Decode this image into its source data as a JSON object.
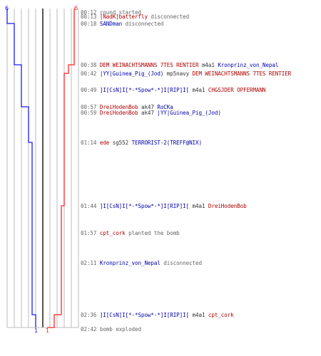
{
  "colors": {
    "team_blue": "#1a1aff",
    "team_red": "#ff2222",
    "name_red": "#b00000",
    "name_blue": "#0000aa",
    "time_gray": "#666666",
    "grid_line": "#bbbbbb",
    "grid_mid": "#555555"
  },
  "graph": {
    "blue_start": "6",
    "red_start": "6",
    "blue_end": "1",
    "red_end": "1",
    "blue_remaining": [
      6,
      5,
      4,
      4,
      3,
      3,
      3,
      2,
      2,
      1
    ],
    "red_remaining": [
      6,
      6,
      5,
      4,
      4,
      3,
      2,
      2,
      1,
      1
    ]
  },
  "log": [
    {
      "time": "00:12",
      "parts": [
        {
          "c": "t",
          "s": "round started"
        }
      ]
    },
    {
      "time": "00:13",
      "parts": [
        {
          "c": "r",
          "s": "[NadK]batterfly"
        },
        {
          "c": "t",
          "s": " disconnected"
        }
      ]
    },
    {
      "time": "00:18",
      "parts": [
        {
          "c": "b",
          "s": "SANDman"
        },
        {
          "c": "t",
          "s": " disconnected"
        }
      ]
    },
    {
      "time": "00:38",
      "parts": [
        {
          "c": "r",
          "s": "DEM WEINACHTSMANNS 7TES RENTIER"
        },
        {
          "c": "k",
          "s": " m4a1 "
        },
        {
          "c": "b",
          "s": "Kronprinz_von_Nepal"
        }
      ]
    },
    {
      "time": "00:42",
      "parts": [
        {
          "c": "b",
          "s": "|YY|Guinea_Pig_(Jod)"
        },
        {
          "c": "k",
          "s": " mp5navy "
        },
        {
          "c": "r",
          "s": "DEM WEINACHTSMANNS 7TES RENTIER"
        }
      ]
    },
    {
      "time": "00:49",
      "parts": [
        {
          "c": "b",
          "s": "]I[CsN]I[*-*Spow*-*]I[RIP]I["
        },
        {
          "c": "k",
          "s": " m4a1 "
        },
        {
          "c": "r",
          "s": "CHGSJDER OPFERMANN"
        }
      ]
    },
    {
      "time": "00:57",
      "parts": [
        {
          "c": "r",
          "s": "DreiHodenBob"
        },
        {
          "c": "k",
          "s": " ak47 "
        },
        {
          "c": "b",
          "s": "RoCKa"
        }
      ]
    },
    {
      "time": "00:59",
      "parts": [
        {
          "c": "r",
          "s": "DreiHodenBob"
        },
        {
          "c": "k",
          "s": " ak47 "
        },
        {
          "c": "b",
          "s": "|YY|Guinea_Pig_(Jod)"
        }
      ]
    },
    {
      "time": "01:14",
      "parts": [
        {
          "c": "r",
          "s": "ede"
        },
        {
          "c": "k",
          "s": " sg552 "
        },
        {
          "c": "b",
          "s": "TERRORIST-2(TREFF@NIX)"
        }
      ]
    },
    {
      "time": "01:44",
      "parts": [
        {
          "c": "b",
          "s": "]I[CsN]I[*-*Spow*-*]I[RIP]I["
        },
        {
          "c": "k",
          "s": " m4a1 "
        },
        {
          "c": "r",
          "s": "DreiHodenBob"
        }
      ]
    },
    {
      "time": "01:57",
      "parts": [
        {
          "c": "r",
          "s": "cpt_cork"
        },
        {
          "c": "t",
          "s": " planted the bomb"
        }
      ]
    },
    {
      "time": "02:11",
      "parts": [
        {
          "c": "b",
          "s": "Kronprinz_von_Nepal"
        },
        {
          "c": "t",
          "s": " disconnected"
        }
      ]
    },
    {
      "time": "02:36",
      "parts": [
        {
          "c": "b",
          "s": "]I[CsN]I[*-*Spow*-*]I[RIP]I["
        },
        {
          "c": "k",
          "s": " m4a1 "
        },
        {
          "c": "r",
          "s": "cpt_cork"
        }
      ]
    },
    {
      "time": "02:42",
      "parts": [
        {
          "c": "t",
          "s": "bomb exploded"
        }
      ]
    }
  ]
}
